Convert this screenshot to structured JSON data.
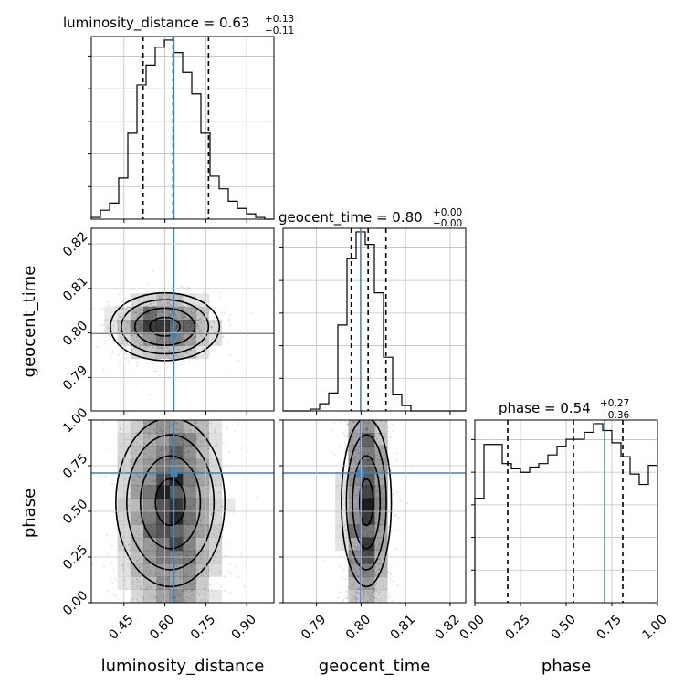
{
  "chart_data": {
    "type": "corner",
    "parameters": [
      "luminosity_distance",
      "geocent_time",
      "phase"
    ],
    "titles": [
      {
        "param": "luminosity_distance",
        "prefix": "luminosity_distance = ",
        "median": "0.63",
        "upper": "+0.13",
        "lower": "−0.11"
      },
      {
        "param": "geocent_time",
        "prefix": "geocent_time = ",
        "median": "0.80",
        "upper": "+0.00",
        "lower": "−0.00"
      },
      {
        "param": "phase",
        "prefix": "phase = ",
        "median": "0.54",
        "upper": "+0.27",
        "lower": "−0.36"
      }
    ],
    "ranges": {
      "luminosity_distance": [
        0.33,
        1.0
      ],
      "geocent_time": [
        0.7825,
        0.8235
      ],
      "phase": [
        0.0,
        1.0
      ]
    },
    "ticks": {
      "luminosity_distance": [
        "0.45",
        "0.60",
        "0.75",
        "0.90"
      ],
      "geocent_time": [
        "0.79",
        "0.80",
        "0.81",
        "0.82"
      ],
      "phase": [
        "0.00",
        "0.25",
        "0.50",
        "0.75",
        "1.00"
      ]
    },
    "truths": {
      "luminosity_distance": 0.633,
      "geocent_time": 0.7999,
      "phase": 0.71
    },
    "quantiles": {
      "luminosity_distance": [
        0.52,
        0.63,
        0.76
      ],
      "geocent_time": [
        0.7978,
        0.8016,
        0.8056
      ],
      "phase": [
        0.18,
        0.54,
        0.81
      ]
    },
    "histograms": {
      "luminosity_distance": {
        "edges": [
          0.33,
          0.3635,
          0.397,
          0.4305,
          0.464,
          0.4975,
          0.531,
          0.5645,
          0.598,
          0.6315,
          0.665,
          0.6985,
          0.732,
          0.7655,
          0.799,
          0.8325,
          0.866,
          0.8995,
          0.933,
          0.9665,
          1.0
        ],
        "counts": [
          1,
          5,
          9,
          23,
          48,
          75,
          86,
          96,
          100,
          93,
          82,
          70,
          48,
          24,
          17,
          10,
          6,
          3,
          1,
          0
        ]
      },
      "geocent_time": {
        "edges": [
          0.7825,
          0.78455,
          0.7866,
          0.78865,
          0.7907,
          0.79275,
          0.7948,
          0.79685,
          0.7989,
          0.80095,
          0.803,
          0.80505,
          0.8071,
          0.80915,
          0.8112,
          0.81325,
          0.8153,
          0.81735,
          0.8194,
          0.82145,
          0.8235
        ],
        "counts": [
          0,
          0,
          0,
          1,
          4,
          10,
          48,
          85,
          100,
          93,
          66,
          30,
          9,
          3,
          0,
          0,
          0,
          0,
          0,
          0
        ]
      },
      "phase": {
        "edges": [
          0.0,
          0.05,
          0.1,
          0.15,
          0.2,
          0.25,
          0.3,
          0.35,
          0.4,
          0.45,
          0.5,
          0.55,
          0.6,
          0.65,
          0.7,
          0.75,
          0.8,
          0.85,
          0.9,
          0.95,
          1.0
        ],
        "counts": [
          60,
          91,
          91,
          80,
          77,
          75,
          78,
          80,
          85,
          90,
          94,
          94,
          98,
          103,
          99,
          92,
          84,
          74,
          68,
          79
        ]
      }
    },
    "scatter_2d": [
      {
        "x_param": "luminosity_distance",
        "y_param": "geocent_time",
        "center": [
          0.6,
          0.8014
        ],
        "spread": [
          0.1,
          0.0038
        ]
      },
      {
        "x_param": "luminosity_distance",
        "y_param": "phase",
        "center": [
          0.62,
          0.55
        ],
        "spread": [
          0.1,
          0.27
        ]
      },
      {
        "x_param": "geocent_time",
        "y_param": "phase",
        "center": [
          0.8012,
          0.55
        ],
        "spread": [
          0.0028,
          0.27
        ]
      }
    ],
    "grid": true,
    "colors": {
      "truth": "#4682b4",
      "hist": "#000000",
      "grid": "#c0c0c0",
      "density": "#000000"
    }
  }
}
